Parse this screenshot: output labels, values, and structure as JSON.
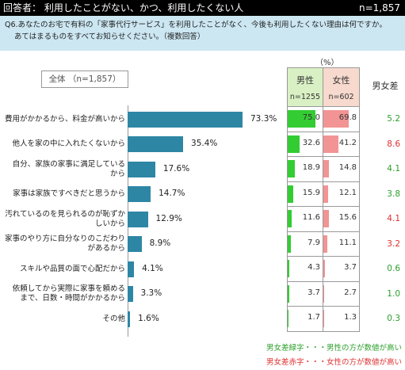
{
  "header": {
    "title": "回答者： 利用したことがない、かつ、利用したくない人",
    "n": "n=1,857"
  },
  "question": {
    "line1": "Q6.あなたのお宅で有料の「家事代行サービス」を利用したことがなく、今後も利用したくない理由は何ですか。",
    "line2": "あてはまるものをすべてお知らせください。（複数回答）"
  },
  "overall_label": "全体 （n=1,857）",
  "unit_label": "（%）",
  "table_headers": {
    "male": "男性",
    "male_n": "n=1255",
    "female": "女性",
    "female_n": "n=602",
    "diff": "男女差"
  },
  "legend": {
    "green": "男女差緑字・・・男性の方が数値が高い",
    "red": "男女差赤字・・・女性の方が数値が高い"
  },
  "colors": {
    "overall_bar": "#2e86a5",
    "male_bar": "#33cc33",
    "female_bar": "#f29494",
    "male_higher": "#2ca02c",
    "female_higher": "#e03030"
  },
  "chart_data": {
    "type": "bar",
    "orientation": "horizontal",
    "categories": [
      "費用がかかるから、料金が高いから",
      "他人を家の中に入れたくないから",
      "自分、家族の家事に満足しているから",
      "家事は家族ですべきだと思うから",
      "汚れているのを見られるのが恥ずかしいから",
      "家事のやり方に自分なりのこだわりがあるから",
      "スキルや品質の面で心配だから",
      "依頼してから実際に家事を頼めるまで、日数・時間がかかるから",
      "その他"
    ],
    "category_lines": [
      [
        "費用がかかるから、料金が高いから"
      ],
      [
        "他人を家の中に入れたくないから"
      ],
      [
        "自分、家族の家事に満足している",
        "から"
      ],
      [
        "家事は家族ですべきだと思うから"
      ],
      [
        "汚れているのを見られるのが恥ずか",
        "しいから"
      ],
      [
        "家事のやり方に自分なりのこだわり",
        "があるから"
      ],
      [
        "スキルや品質の面で心配だから"
      ],
      [
        "依頼してから実際に家事を頼める",
        "まで、日数・時間がかかるから"
      ],
      [
        "その他"
      ]
    ],
    "series": [
      {
        "name": "全体 （n=1,857）",
        "values": [
          73.3,
          35.4,
          17.6,
          14.7,
          12.9,
          8.9,
          4.1,
          3.3,
          1.6
        ]
      },
      {
        "name": "男性",
        "values": [
          75.0,
          32.6,
          18.9,
          15.9,
          11.6,
          7.9,
          4.3,
          3.7,
          1.7
        ]
      },
      {
        "name": "女性",
        "values": [
          69.8,
          41.2,
          14.8,
          12.1,
          15.6,
          11.1,
          3.7,
          2.7,
          1.3
        ]
      }
    ],
    "overall_labels": [
      "73.3%",
      "35.4%",
      "17.6%",
      "14.7%",
      "12.9%",
      "8.9%",
      "4.1%",
      "3.3%",
      "1.6%"
    ],
    "diff": [
      {
        "text": "5.2",
        "higher": "male"
      },
      {
        "text": "8.6",
        "higher": "female"
      },
      {
        "text": "4.1",
        "higher": "male"
      },
      {
        "text": "3.8",
        "higher": "male"
      },
      {
        "text": "4.1",
        "higher": "female"
      },
      {
        "text": "3.2",
        "higher": "female"
      },
      {
        "text": "0.6",
        "higher": "male"
      },
      {
        "text": "1.0",
        "higher": "male"
      },
      {
        "text": "0.3",
        "higher": "male"
      }
    ],
    "male_labels": [
      "75.0",
      "32.6",
      "18.9",
      "15.9",
      "11.6",
      "7.9",
      "4.3",
      "3.7",
      "1.7"
    ],
    "female_labels": [
      "69.8",
      "41.2",
      "14.8",
      "12.1",
      "15.6",
      "11.1",
      "3.7",
      "2.7",
      "1.3"
    ],
    "xlim": [
      0,
      100
    ]
  }
}
